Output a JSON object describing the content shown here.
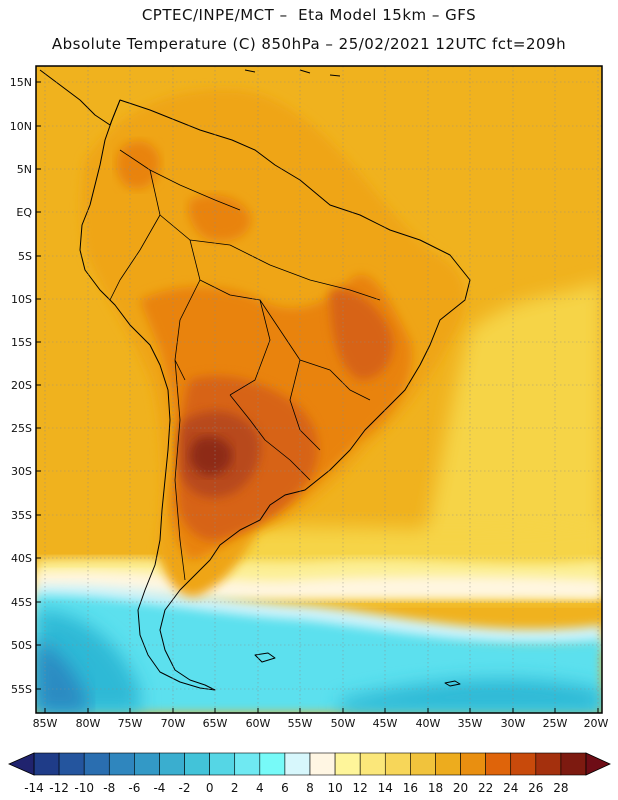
{
  "header": {
    "line1": "CPTEC/INPE/MCT –  Eta Model 15km – GFS",
    "line2": "Absolute Temperature (C) 850hPa – 25/02/2021 12UTC fct=209h"
  },
  "map": {
    "lat_labels": [
      "15N",
      "10N",
      "5N",
      "EQ",
      "5S",
      "10S",
      "15S",
      "20S",
      "25S",
      "30S",
      "35S",
      "40S",
      "45S",
      "50S",
      "55S"
    ],
    "lon_labels": [
      "85W",
      "80W",
      "75W",
      "70W",
      "65W",
      "60W",
      "55W",
      "50W",
      "45W",
      "40W",
      "35W",
      "30W",
      "25W",
      "20W"
    ],
    "field_colors": {
      "ocean_warm": "#F0B21E",
      "land_warm": "#EFA515",
      "land_hot": "#E9830E",
      "land_hotter": "#D76412",
      "core_hot": "#B8481A",
      "core_max": "#8E2A14",
      "cool_yellow": "#F6D446",
      "pale_yellow": "#FCEF95",
      "cream": "#FFF6E0",
      "pale_cyan": "#CFF3FA",
      "cyan": "#5CE0EE",
      "teal": "#2FB9D6",
      "blue": "#2A8BC2"
    }
  },
  "colorbar": {
    "labels": [
      "-14",
      "-12",
      "-10",
      "-8",
      "-6",
      "-4",
      "-2",
      "0",
      "2",
      "4",
      "6",
      "8",
      "10",
      "12",
      "14",
      "16",
      "18",
      "20",
      "22",
      "24",
      "26",
      "28"
    ],
    "colors": [
      "#1F3C88",
      "#24559E",
      "#2A6EB0",
      "#2F86BE",
      "#3399C6",
      "#3AAECF",
      "#42C3D9",
      "#55D6E5",
      "#6FE9F2",
      "#77FAF8",
      "#D7F7FC",
      "#FFF6E3",
      "#FEF59A",
      "#FBE77A",
      "#F7D659",
      "#F1C33C",
      "#EDAC1E",
      "#E98F10",
      "#DF640A",
      "#C84A0B",
      "#A4300D",
      "#7D1A10"
    ],
    "arrow_left_color": "#20236E",
    "arrow_right_color": "#6E0D16"
  }
}
